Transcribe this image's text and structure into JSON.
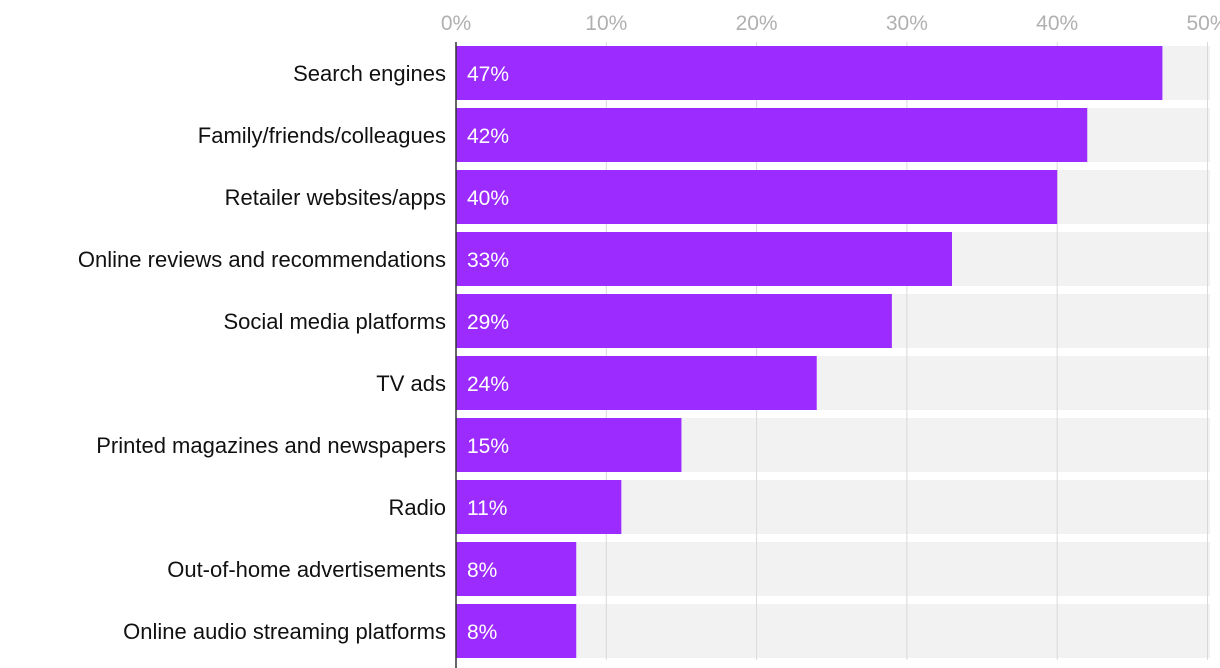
{
  "chart_data": {
    "type": "bar",
    "orientation": "horizontal",
    "title": "",
    "xlabel": "",
    "ylabel": "",
    "xlim": [
      0,
      50
    ],
    "grid": true,
    "categories": [
      "Search engines",
      "Family/friends/colleagues",
      "Retailer websites/apps",
      "Online reviews and recommendations",
      "Social media platforms",
      "TV ads",
      "Printed magazines and newspapers",
      "Radio",
      "Out-of-home advertisements",
      "Online audio streaming platforms"
    ],
    "values": [
      47,
      42,
      40,
      33,
      29,
      24,
      15,
      11,
      8,
      8
    ],
    "value_labels": [
      "47%",
      "42%",
      "40%",
      "33%",
      "29%",
      "24%",
      "15%",
      "11%",
      "8%",
      "8%"
    ],
    "ticks": [
      0,
      10,
      20,
      30,
      40,
      50
    ],
    "tick_labels": [
      "0%",
      "10%",
      "20%",
      "30%",
      "40%",
      "50%"
    ],
    "colors": {
      "bar": "#9b2bff",
      "track": "#f2f2f2",
      "grid": "#d9d9d9",
      "axis": "#333333"
    }
  }
}
